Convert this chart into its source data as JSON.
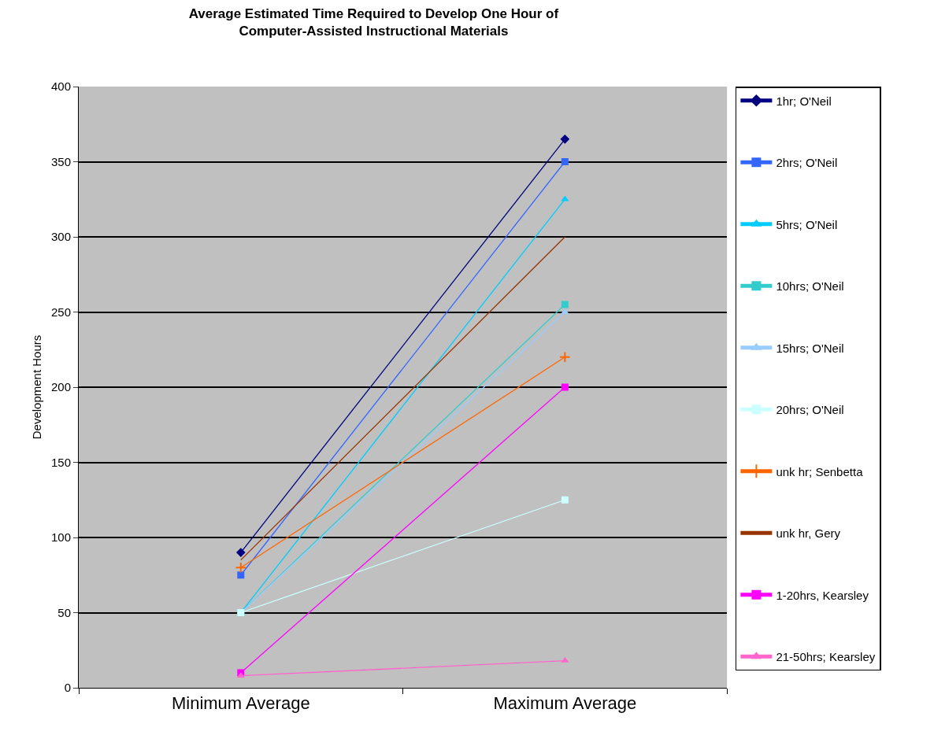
{
  "chart_data": {
    "type": "line",
    "title": "Average Estimated Time Required to Develop One Hour of\nComputer-Assisted Instructional Materials",
    "ylabel": "Development Hours",
    "categories": [
      "Minimum Average",
      "Maximum Average"
    ],
    "ylim": [
      0,
      400
    ],
    "yticks": [
      0,
      50,
      100,
      150,
      200,
      250,
      300,
      350,
      400
    ],
    "grid": "y",
    "legend": "right",
    "series": [
      {
        "name": "1hr; O'Neil",
        "color": "#000080",
        "marker": "diamond",
        "values": [
          90,
          365
        ]
      },
      {
        "name": "2hrs; O'Neil",
        "color": "#3366ff",
        "marker": "square",
        "values": [
          75,
          350
        ]
      },
      {
        "name": "5hrs; O'Neil",
        "color": "#00ccff",
        "marker": "triangle",
        "values": [
          50,
          325
        ]
      },
      {
        "name": "10hrs; O'Neil",
        "color": "#33cccc",
        "marker": "square",
        "values": [
          50,
          255
        ]
      },
      {
        "name": "15hrs; O'Neil",
        "color": "#99ccff",
        "marker": "triangle",
        "values": [
          50,
          250
        ]
      },
      {
        "name": "20hrs; O'Neil",
        "color": "#ccffff",
        "marker": "square",
        "values": [
          50,
          125
        ]
      },
      {
        "name": "unk hr; Senbetta",
        "color": "#ff6600",
        "marker": "cross",
        "values": [
          80,
          220
        ]
      },
      {
        "name": "unk hr, Gery",
        "color": "#993300",
        "marker": "none",
        "values": [
          85,
          300
        ]
      },
      {
        "name": "1-20hrs, Kearsley",
        "color": "#ff00ff",
        "marker": "square",
        "values": [
          10,
          200
        ]
      },
      {
        "name": "21-50hrs; Kearsley",
        "color": "#ff66cc",
        "marker": "triangle",
        "values": [
          8,
          18
        ]
      }
    ]
  }
}
